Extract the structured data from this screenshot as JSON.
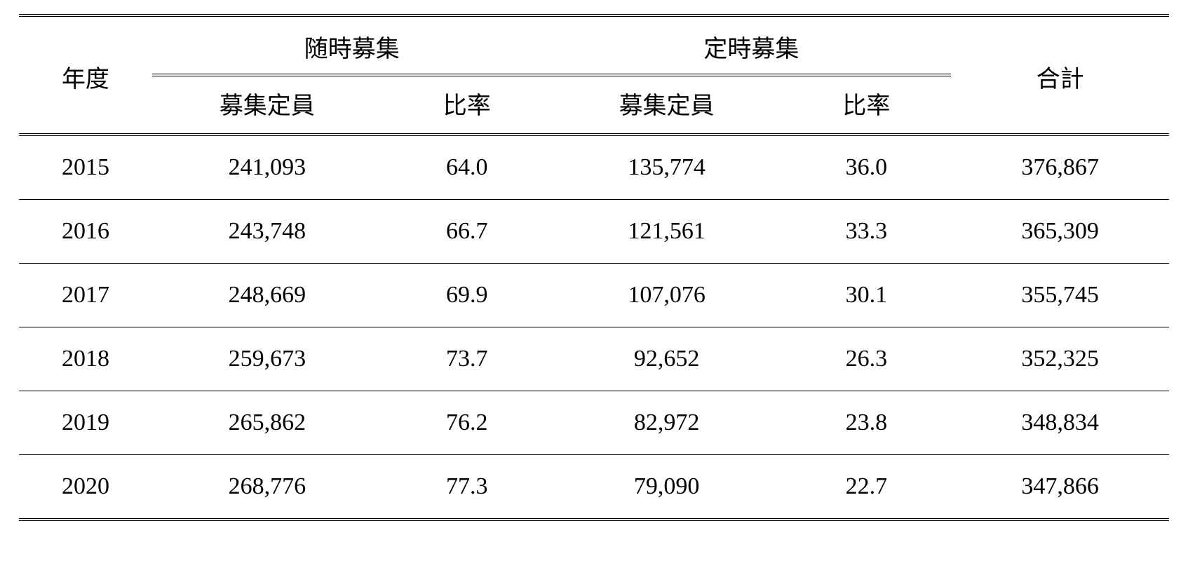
{
  "table": {
    "type": "table",
    "background_color": "#ffffff",
    "text_color": "#000000",
    "font_family": "serif",
    "font_size_pt": 26,
    "border_color": "#000000",
    "outer_rule": "double",
    "header": {
      "year": "年度",
      "group1": "随時募集",
      "group2": "定時募集",
      "total": "合計",
      "sub_quota": "募集定員",
      "sub_ratio": "比率"
    },
    "rows": [
      {
        "year": "2015",
        "g1_quota": "241,093",
        "g1_ratio": "64.0",
        "g2_quota": "135,774",
        "g2_ratio": "36.0",
        "total": "376,867"
      },
      {
        "year": "2016",
        "g1_quota": "243,748",
        "g1_ratio": "66.7",
        "g2_quota": "121,561",
        "g2_ratio": "33.3",
        "total": "365,309"
      },
      {
        "year": "2017",
        "g1_quota": "248,669",
        "g1_ratio": "69.9",
        "g2_quota": "107,076",
        "g2_ratio": "30.1",
        "total": "355,745"
      },
      {
        "year": "2018",
        "g1_quota": "259,673",
        "g1_ratio": "73.7",
        "g2_quota": "92,652",
        "g2_ratio": "26.3",
        "total": "352,325"
      },
      {
        "year": "2019",
        "g1_quota": "265,862",
        "g1_ratio": "76.2",
        "g2_quota": "82,972",
        "g2_ratio": "23.8",
        "total": "348,834"
      },
      {
        "year": "2020",
        "g1_quota": "268,776",
        "g1_ratio": "77.3",
        "g2_quota": "79,090",
        "g2_ratio": "22.7",
        "total": "347,866"
      }
    ]
  }
}
